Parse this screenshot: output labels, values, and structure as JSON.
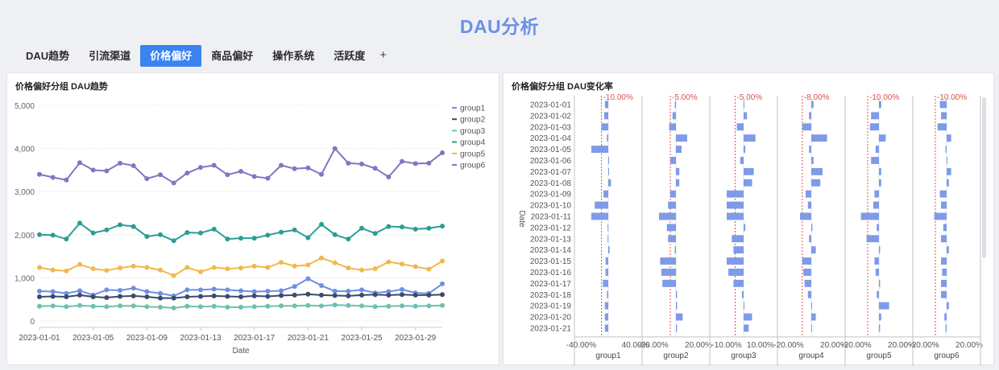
{
  "page_title": "DAU分析",
  "tabs": [
    {
      "label": "DAU趋势",
      "active": false
    },
    {
      "label": "引流渠道",
      "active": false
    },
    {
      "label": "价格偏好",
      "active": true
    },
    {
      "label": "商品偏好",
      "active": false
    },
    {
      "label": "操作系统",
      "active": false
    },
    {
      "label": "活跃度",
      "active": false
    }
  ],
  "add_tab_label": "+",
  "left_panel": {
    "title": "价格偏好分组 DAU趋势"
  },
  "right_panel": {
    "title": "价格偏好分组 DAU变化率"
  },
  "chart_data": [
    {
      "type": "line",
      "title": "价格偏好分组 DAU趋势",
      "xlabel": "Date",
      "ylabel": "",
      "ylim": [
        0,
        5000
      ],
      "yticks": [
        0,
        1000,
        2000,
        3000,
        4000,
        5000
      ],
      "ytick_labels": [
        "0",
        "1,000",
        "2,000",
        "3,000",
        "4,000",
        "5,000"
      ],
      "xtick_labels": [
        "2023-01-01",
        "2023-01-05",
        "2023-01-09",
        "2023-01-13",
        "2023-01-17",
        "2023-01-21",
        "2023-01-25",
        "2023-01-29"
      ],
      "x": [
        "2023-01-01",
        "2023-01-02",
        "2023-01-03",
        "2023-01-04",
        "2023-01-05",
        "2023-01-06",
        "2023-01-07",
        "2023-01-08",
        "2023-01-09",
        "2023-01-10",
        "2023-01-11",
        "2023-01-12",
        "2023-01-13",
        "2023-01-14",
        "2023-01-15",
        "2023-01-16",
        "2023-01-17",
        "2023-01-18",
        "2023-01-19",
        "2023-01-20",
        "2023-01-21",
        "2023-01-22",
        "2023-01-23",
        "2023-01-24",
        "2023-01-25",
        "2023-01-26",
        "2023-01-27",
        "2023-01-28",
        "2023-01-29",
        "2023-01-30",
        "2023-01-31"
      ],
      "legend_position": "top-right",
      "grid": true,
      "series": [
        {
          "name": "group1",
          "color": "#6d8fe4",
          "values": [
            690,
            680,
            640,
            700,
            600,
            720,
            710,
            760,
            680,
            640,
            580,
            720,
            720,
            740,
            720,
            700,
            680,
            690,
            700,
            800,
            980,
            820,
            690,
            690,
            720,
            650,
            680,
            730,
            650,
            640,
            860
          ]
        },
        {
          "name": "group2",
          "color": "#3b4b6b",
          "values": [
            560,
            570,
            560,
            600,
            560,
            540,
            570,
            580,
            560,
            530,
            530,
            560,
            570,
            580,
            570,
            560,
            580,
            570,
            590,
            600,
            620,
            600,
            590,
            580,
            600,
            610,
            600,
            610,
            600,
            600,
            610
          ]
        },
        {
          "name": "group3",
          "color": "#6cc1b0",
          "values": [
            340,
            350,
            330,
            360,
            340,
            330,
            350,
            350,
            330,
            320,
            300,
            340,
            330,
            340,
            320,
            320,
            330,
            340,
            350,
            350,
            360,
            350,
            370,
            360,
            350,
            330,
            340,
            350,
            340,
            350,
            360
          ]
        },
        {
          "name": "group4",
          "color": "#2a9d95",
          "values": [
            2000,
            1990,
            1900,
            2270,
            2040,
            2110,
            2230,
            2190,
            1960,
            2000,
            1860,
            2050,
            2040,
            2130,
            1900,
            1920,
            1920,
            1990,
            2060,
            2110,
            1930,
            2240,
            2000,
            1900,
            2150,
            2030,
            2190,
            2180,
            2130,
            2150,
            2200
          ]
        },
        {
          "name": "group5",
          "color": "#f2b84c",
          "values": [
            1240,
            1180,
            1160,
            1310,
            1210,
            1170,
            1230,
            1270,
            1240,
            1180,
            1050,
            1240,
            1140,
            1240,
            1210,
            1230,
            1270,
            1240,
            1360,
            1270,
            1300,
            1460,
            1350,
            1230,
            1180,
            1210,
            1370,
            1320,
            1260,
            1200,
            1390
          ]
        },
        {
          "name": "group6",
          "color": "#8673c2",
          "values": [
            3400,
            3330,
            3270,
            3670,
            3500,
            3480,
            3660,
            3600,
            3300,
            3390,
            3200,
            3430,
            3560,
            3610,
            3390,
            3470,
            3350,
            3310,
            3610,
            3530,
            3550,
            3400,
            4000,
            3660,
            3640,
            3540,
            3340,
            3700,
            3650,
            3660,
            3900
          ]
        }
      ]
    },
    {
      "type": "bar",
      "orientation": "horizontal",
      "title": "价格偏好分组 DAU变化率",
      "ylabel": "Date",
      "categories": [
        "2023-01-01",
        "2023-01-02",
        "2023-01-03",
        "2023-01-04",
        "2023-01-05",
        "2023-01-06",
        "2023-01-07",
        "2023-01-08",
        "2023-01-09",
        "2023-01-10",
        "2023-01-11",
        "2023-01-12",
        "2023-01-13",
        "2023-01-14",
        "2023-01-15",
        "2023-01-16",
        "2023-01-17",
        "2023-01-18",
        "2023-01-19",
        "2023-01-20",
        "2023-01-21"
      ],
      "bar_color": "#7e9be8",
      "reference_color": "#d9534f",
      "facets": [
        {
          "name": "group1",
          "xlim": [
            -0.5,
            0.5
          ],
          "xticks": [
            -0.4,
            0.4
          ],
          "xtick_labels": [
            "-40.00%",
            "40.00%"
          ],
          "reference": -0.1,
          "reference_label": "-10.00%",
          "values": [
            -0.05,
            -0.06,
            -0.1,
            -0.02,
            -0.25,
            0.01,
            0.01,
            0.04,
            -0.07,
            -0.2,
            -0.25,
            -0.01,
            -0.01,
            0.02,
            -0.04,
            -0.04,
            -0.08,
            -0.02,
            -0.05,
            -0.05,
            -0.05
          ]
        },
        {
          "name": "group2",
          "xlim": [
            -0.3,
            0.3
          ],
          "xticks": [
            -0.2,
            0.2
          ],
          "xtick_labels": [
            "-20.00%",
            "20.00%"
          ],
          "reference": -0.05,
          "reference_label": "-5.00%",
          "values": [
            -0.01,
            -0.03,
            -0.06,
            0.1,
            0.05,
            -0.05,
            0.03,
            0.03,
            -0.05,
            -0.07,
            -0.15,
            -0.08,
            -0.07,
            -0.01,
            -0.14,
            -0.13,
            -0.12,
            0.01,
            0.01,
            0.06,
            0.01
          ]
        },
        {
          "name": "group3",
          "xlim": [
            -0.2,
            0.2
          ],
          "xticks": [
            -0.1,
            0.1
          ],
          "xtick_labels": [
            "-10.00%",
            "10.00%"
          ],
          "reference": -0.05,
          "reference_label": "-5.00%",
          "values": [
            0.0,
            0.02,
            -0.04,
            0.07,
            0.01,
            -0.02,
            0.06,
            0.05,
            -0.1,
            -0.1,
            -0.1,
            0.01,
            -0.07,
            -0.06,
            -0.1,
            -0.09,
            -0.06,
            -0.01,
            0.0,
            0.05,
            0.03
          ]
        },
        {
          "name": "group4",
          "xlim": [
            -0.3,
            0.3
          ],
          "xticks": [
            -0.2,
            0.2
          ],
          "xtick_labels": [
            "-20.00%",
            "20.00%"
          ],
          "reference": -0.08,
          "reference_label": "-8.00%",
          "values": [
            0.02,
            -0.02,
            -0.08,
            0.14,
            -0.02,
            0.02,
            0.1,
            0.08,
            -0.05,
            -0.03,
            -0.1,
            0.01,
            -0.02,
            0.04,
            -0.08,
            -0.07,
            -0.06,
            -0.03,
            0.0,
            0.04,
            0.0
          ]
        },
        {
          "name": "group5",
          "xlim": [
            -0.3,
            0.3
          ],
          "xticks": [
            -0.2,
            0.2
          ],
          "xtick_labels": [
            "-20.00%",
            "20.00%"
          ],
          "reference": -0.1,
          "reference_label": "-10.00%",
          "values": [
            0.02,
            -0.07,
            -0.08,
            0.06,
            -0.03,
            -0.07,
            0.02,
            0.02,
            -0.04,
            -0.05,
            -0.16,
            -0.02,
            -0.11,
            0.01,
            -0.04,
            -0.03,
            0.01,
            -0.02,
            0.09,
            0.02,
            0.01
          ]
        },
        {
          "name": "group6",
          "xlim": [
            -0.3,
            0.3
          ],
          "xticks": [
            -0.2,
            0.2
          ],
          "xtick_labels": [
            "-20.00%",
            "20.00%"
          ],
          "reference": -0.1,
          "reference_label": "-10.00%",
          "values": [
            -0.06,
            -0.05,
            -0.08,
            0.04,
            -0.01,
            0.0,
            0.04,
            0.02,
            -0.06,
            -0.05,
            -0.11,
            -0.03,
            -0.05,
            0.02,
            -0.05,
            -0.04,
            -0.05,
            -0.05,
            0.02,
            -0.02,
            -0.01
          ]
        }
      ]
    }
  ]
}
